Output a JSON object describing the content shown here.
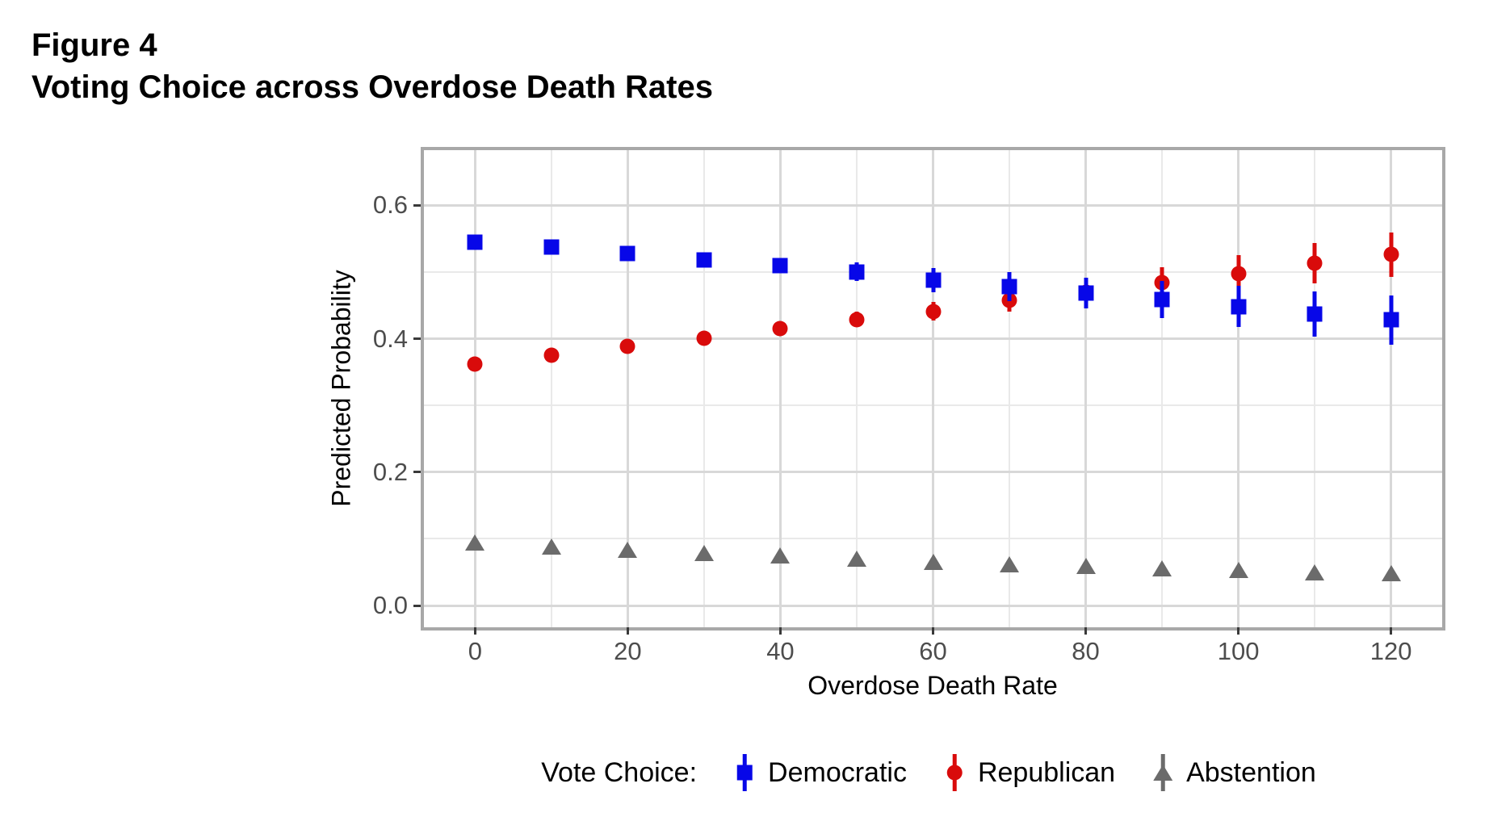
{
  "figure": {
    "label": "Figure 4",
    "title": "Voting Choice across Overdose Death Rates"
  },
  "chart_data": {
    "type": "scatter",
    "subtype": "pointrange",
    "title": "Voting Choice across Overdose Death Rates",
    "xlabel": "Overdose Death Rate",
    "ylabel": "Predicted Probability",
    "legend_title": "Vote Choice:",
    "legend_position": "bottom",
    "grid": true,
    "x": [
      0,
      10,
      20,
      30,
      40,
      50,
      60,
      70,
      80,
      90,
      100,
      110,
      120
    ],
    "series": [
      {
        "name": "Democratic",
        "marker": "square",
        "color": "#0707e8",
        "values": [
          0.545,
          0.537,
          0.528,
          0.518,
          0.509,
          0.5,
          0.488,
          0.478,
          0.468,
          0.459,
          0.448,
          0.437,
          0.428
        ],
        "lower": [
          0.535,
          0.527,
          0.518,
          0.508,
          0.498,
          0.486,
          0.47,
          0.456,
          0.445,
          0.431,
          0.417,
          0.403,
          0.391
        ],
        "upper": [
          0.555,
          0.547,
          0.538,
          0.528,
          0.52,
          0.514,
          0.506,
          0.5,
          0.491,
          0.487,
          0.479,
          0.471,
          0.465
        ]
      },
      {
        "name": "Republican",
        "marker": "circle",
        "color": "#d90b0b",
        "values": [
          0.362,
          0.375,
          0.388,
          0.401,
          0.415,
          0.429,
          0.441,
          0.457,
          0.47,
          0.484,
          0.498,
          0.513,
          0.526
        ],
        "lower": [
          0.352,
          0.365,
          0.378,
          0.391,
          0.404,
          0.417,
          0.427,
          0.441,
          0.452,
          0.461,
          0.471,
          0.483,
          0.493
        ],
        "upper": [
          0.372,
          0.385,
          0.398,
          0.411,
          0.426,
          0.441,
          0.455,
          0.473,
          0.488,
          0.507,
          0.525,
          0.543,
          0.559
        ]
      },
      {
        "name": "Abstention",
        "marker": "triangle",
        "color": "#6b6b6b",
        "values": [
          0.094,
          0.089,
          0.084,
          0.079,
          0.075,
          0.07,
          0.066,
          0.062,
          0.059,
          0.056,
          0.053,
          0.05,
          0.048
        ],
        "lower": [
          0.09,
          0.085,
          0.08,
          0.075,
          0.071,
          0.066,
          0.062,
          0.058,
          0.055,
          0.052,
          0.049,
          0.046,
          0.044
        ],
        "upper": [
          0.098,
          0.093,
          0.088,
          0.083,
          0.079,
          0.074,
          0.07,
          0.066,
          0.063,
          0.06,
          0.057,
          0.054,
          0.052
        ]
      }
    ],
    "x_ticks": [
      0,
      20,
      40,
      60,
      80,
      100,
      120
    ],
    "x_tick_labels": [
      "0",
      "20",
      "40",
      "60",
      "80",
      "100",
      "120"
    ],
    "x_minor": [
      10,
      30,
      50,
      70,
      90,
      110
    ],
    "y_ticks": [
      0.0,
      0.2,
      0.4,
      0.6
    ],
    "y_tick_labels": [
      "0.0",
      "0.2",
      "0.4",
      "0.6"
    ],
    "y_minor": [
      0.1,
      0.3,
      0.5
    ],
    "xlim": [
      -6.7,
      126.7
    ],
    "ylim": [
      -0.0325,
      0.6825
    ],
    "draw_order": [
      "Republican",
      "Democratic",
      "Abstention"
    ]
  },
  "colors": {
    "panel_border": "#a8a8a8",
    "grid_major": "#d8d8d8",
    "grid_minor": "#e9e9e9",
    "tick_text": "#4d4d4d",
    "text": "#000000"
  }
}
